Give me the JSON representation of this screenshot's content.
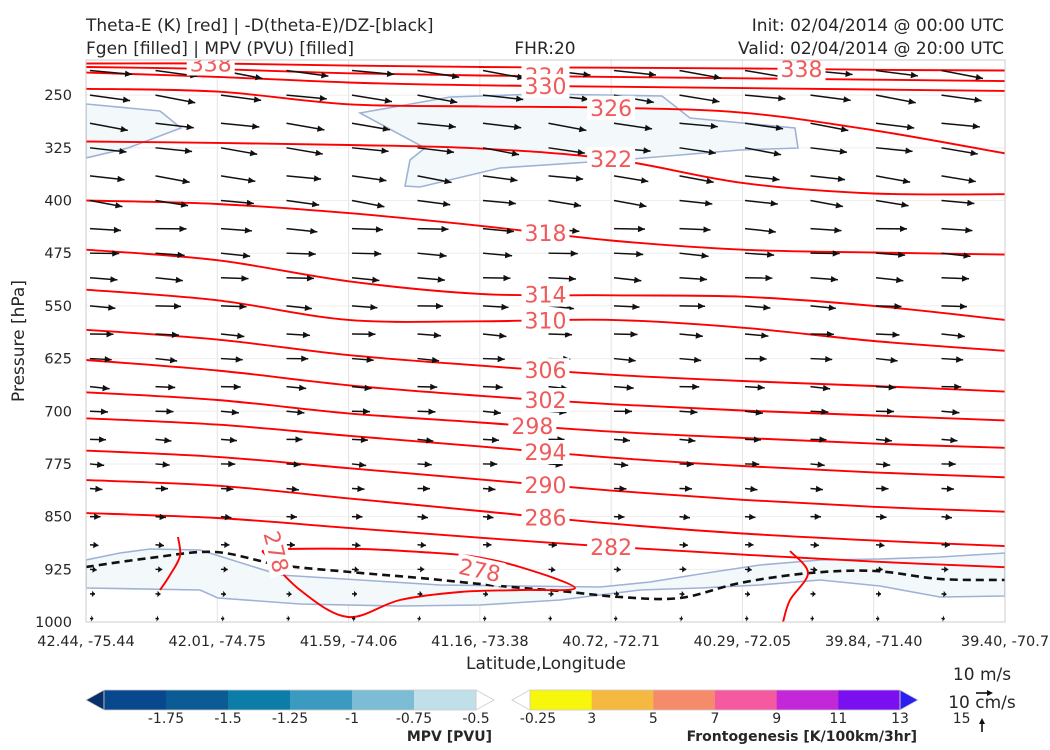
{
  "header": {
    "title_left_1": "Theta-E (K) [red] | -D(theta-E)/DZ-[black]",
    "title_left_2": "Fgen [filled] | MPV (PVU) [filled]",
    "title_center": "FHR:20",
    "title_right_1": "Init: 02/04/2014 @ 00:00 UTC",
    "title_right_2": "Valid: 02/04/2014 @ 20:00 UTC"
  },
  "chart_data": {
    "type": "cross-section",
    "xlabel": "Latitude,Longitude",
    "ylabel": "Pressure [hPa]",
    "ylim": [
      1000,
      200
    ],
    "x_ticks": [
      "42.44, -75.44",
      "42.01, -74.75",
      "41.59, -74.06",
      "41.16, -73.38",
      "40.72, -72.71",
      "40.29, -72.05",
      "39.84, -71.40",
      "39.40, -70.7"
    ],
    "y_ticks": [
      250,
      325,
      400,
      475,
      550,
      625,
      700,
      775,
      850,
      925,
      1000
    ],
    "theta_e_contours": [
      {
        "value": 338,
        "p": [
          205,
          205,
          208,
          210,
          211,
          212,
          214,
          215
        ],
        "labels": [
          {
            "text": "338",
            "x": 0.95
          },
          {
            "text": "338",
            "x": 5.45
          }
        ]
      },
      {
        "value": 334,
        "p": [
          210,
          213,
          219,
          222,
          224,
          226,
          228,
          230
        ],
        "labels": [
          {
            "text": "334",
            "x": 3.5
          }
        ]
      },
      {
        "value": 330,
        "p": [
          218,
          224,
          232,
          236,
          238,
          240,
          242,
          244
        ],
        "labels": [
          {
            "text": "330",
            "x": 3.5
          }
        ]
      },
      {
        "value": 326,
        "p": [
          241,
          245,
          263,
          266,
          268,
          275,
          300,
          333
        ],
        "labels": [
          {
            "text": "326",
            "x": 4.0
          }
        ]
      },
      {
        "value": 322,
        "p": [
          316,
          318,
          321,
          326,
          341,
          375,
          390,
          391
        ],
        "labels": [
          {
            "text": "322",
            "x": 4.0
          }
        ]
      },
      {
        "value": 318,
        "p": [
          400,
          405,
          418,
          436,
          457,
          470,
          474,
          477
        ],
        "labels": [
          {
            "text": "318",
            "x": 3.5
          }
        ]
      },
      {
        "value": 314,
        "p": [
          470,
          485,
          515,
          533,
          535,
          537,
          550,
          570
        ],
        "labels": [
          {
            "text": "314",
            "x": 3.5
          }
        ]
      },
      {
        "value": 310,
        "p": [
          527,
          542,
          570,
          572,
          570,
          581,
          600,
          614
        ],
        "labels": [
          {
            "text": "310",
            "x": 3.5
          }
        ]
      },
      {
        "value": 306,
        "p": [
          584,
          598,
          620,
          635,
          648,
          657,
          664,
          672
        ],
        "labels": [
          {
            "text": "306",
            "x": 3.5
          }
        ]
      },
      {
        "value": 302,
        "p": [
          627,
          642,
          663,
          678,
          690,
          699,
          706,
          713
        ],
        "labels": [
          {
            "text": "302",
            "x": 3.5
          }
        ]
      },
      {
        "value": 298,
        "p": [
          673,
          684,
          703,
          716,
          729,
          738,
          746,
          752
        ],
        "labels": [
          {
            "text": "298",
            "x": 3.4
          }
        ]
      },
      {
        "value": 294,
        "p": [
          710,
          719,
          735,
          750,
          766,
          778,
          787,
          794
        ],
        "labels": [
          {
            "text": "294",
            "x": 3.5
          }
        ]
      },
      {
        "value": 290,
        "p": [
          756,
          765,
          781,
          797,
          813,
          826,
          836,
          843
        ],
        "labels": [
          {
            "text": "290",
            "x": 3.5
          }
        ]
      },
      {
        "value": 286,
        "p": [
          798,
          806,
          824,
          842,
          860,
          874,
          884,
          892
        ],
        "labels": [
          {
            "text": "286",
            "x": 3.5
          }
        ]
      },
      {
        "value": 282,
        "p": [
          845,
          852,
          866,
          880,
          893,
          904,
          914,
          922
        ],
        "labels": [
          {
            "text": "282",
            "x": 4.0
          }
        ]
      }
    ],
    "contour_278_labels": [
      {
        "text": "278",
        "x": 1.45,
        "p": 900,
        "angle": 75
      },
      {
        "text": "278",
        "x": 3.0,
        "p": 926,
        "angle": 12
      }
    ],
    "mpv_levels": [
      -1.75,
      -1.5,
      -1.25,
      -1.0,
      -0.75,
      -0.5,
      -0.25
    ],
    "mpv_colors": [
      "#08306b",
      "#08488e",
      "#0b5c94",
      "#0b7da8",
      "#3a9abf",
      "#7cbcd4",
      "#bfdfe9",
      "#ffffff"
    ],
    "mpv_label": "MPV [PVU]",
    "fgen_levels": [
      3,
      5,
      7,
      9,
      11,
      13,
      15
    ],
    "fgen_colors": [
      "#ffffff",
      "#f7f70d",
      "#f5b942",
      "#f58b6a",
      "#f55aa0",
      "#c228d8",
      "#7a0fef",
      "#2b1ff0"
    ],
    "fgen_label": "Frontogenesis [K/100km/3hr]",
    "ref_vector_u": "10 m/s",
    "ref_vector_w": "10 cm/s",
    "colors": {
      "theta_e": "#ff0000",
      "theta_e_label": "#f05a5a",
      "vectors": "#111111",
      "mpv_fill": "#f3f9fb",
      "mpv_edge": "#9fb2d6"
    }
  }
}
